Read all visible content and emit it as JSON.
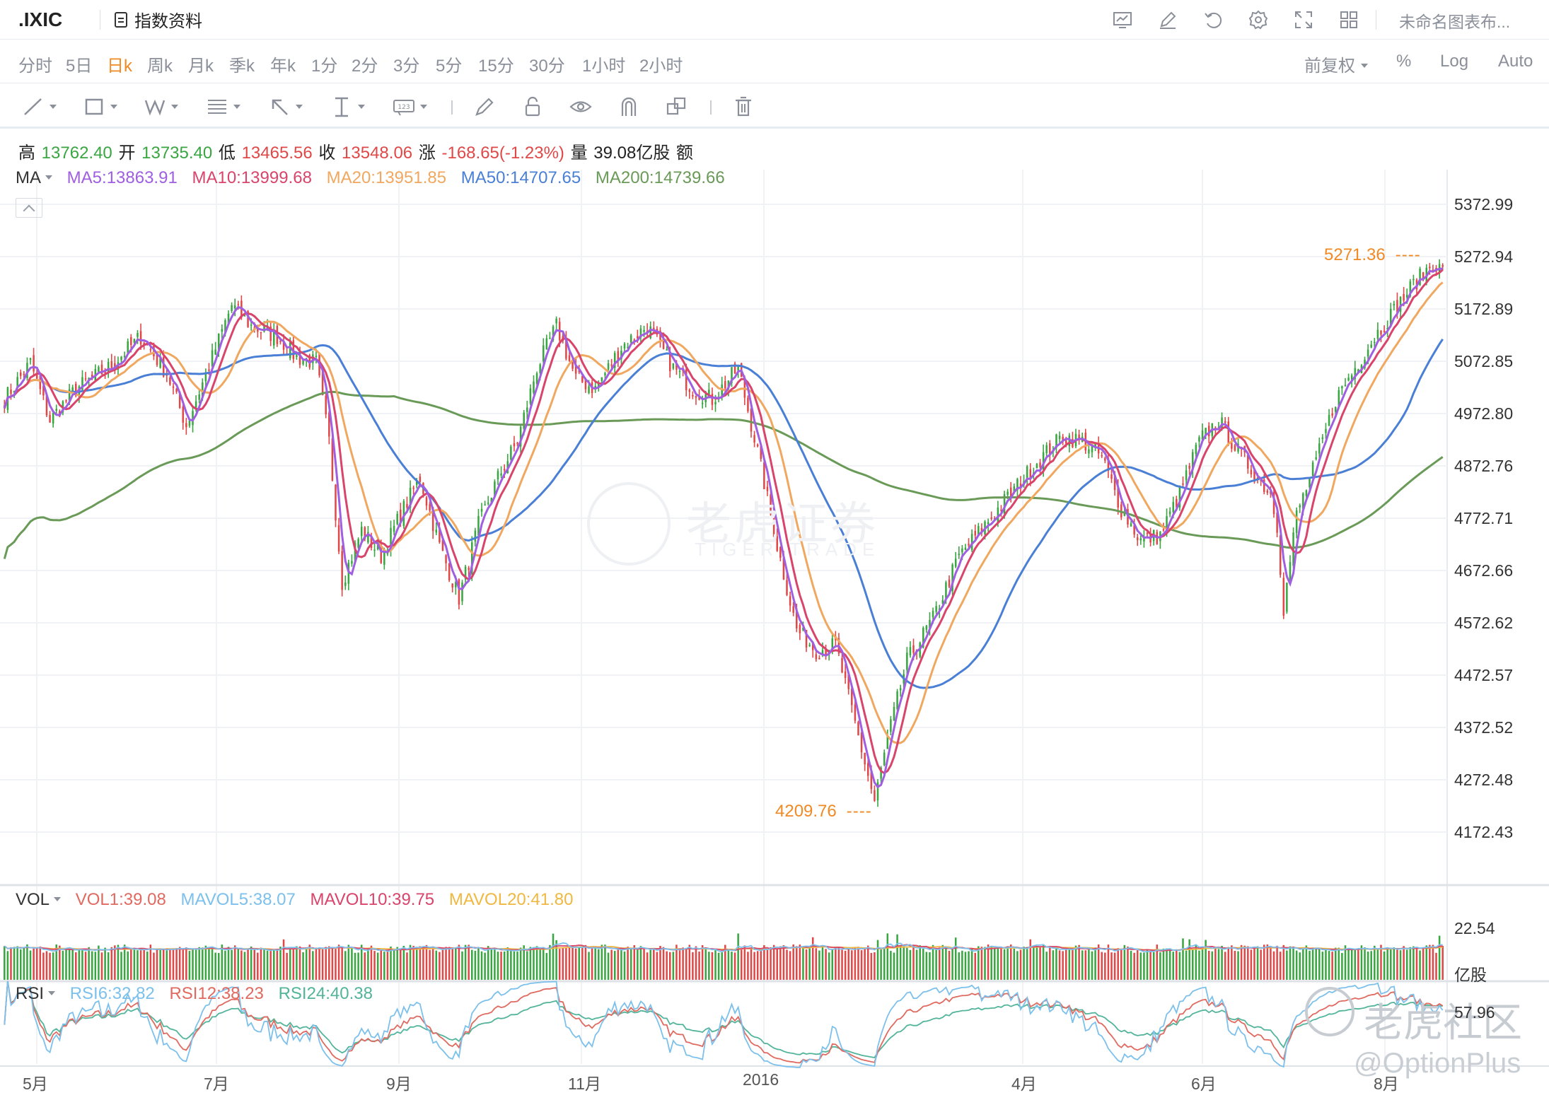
{
  "header": {
    "symbol": ".IXIC",
    "info_button": "指数资料",
    "layout_name": "未命名图表布...",
    "icons": [
      "indicator-icon",
      "draw-icon",
      "undo-icon",
      "settings-icon",
      "fullscreen-icon",
      "layout-grid-icon"
    ]
  },
  "periods": [
    "分时",
    "5日",
    "日k",
    "周k",
    "月k",
    "季k",
    "年k",
    "1分",
    "2分",
    "3分",
    "5分",
    "15分",
    "30分",
    "1小时",
    "2小时"
  ],
  "active_period": "日k",
  "right_options": {
    "adjust": "前复权",
    "percent": "%",
    "log": "Log",
    "auto": "Auto"
  },
  "tools": [
    "line-tool-icon",
    "rect-tool-icon",
    "wave-tool-icon",
    "fib-tool-icon",
    "arrow-tool-icon",
    "measure-tool-icon",
    "label-tool-icon",
    "brush-icon",
    "lock-icon",
    "eye-icon",
    "magnet-icon",
    "clone-icon",
    "trash-icon"
  ],
  "quote": {
    "high_label": "高",
    "high": "13762.40",
    "open_label": "开",
    "open": "13735.40",
    "low_label": "低",
    "low": "13465.56",
    "close_label": "收",
    "close": "13548.06",
    "change_label": "涨",
    "change": "-168.65(-1.23%)",
    "volume_label": "量",
    "volume": "39.08亿股",
    "amount_label": "额"
  },
  "ma_legend": {
    "selector": "MA",
    "ma5": "MA5:13863.91",
    "ma10": "MA10:13999.68",
    "ma20": "MA20:13951.85",
    "ma50": "MA50:14707.65",
    "ma200": "MA200:14739.66"
  },
  "vol_legend": {
    "selector": "VOL",
    "vol1": "VOL1:39.08",
    "mavol5": "MAVOL5:38.07",
    "mavol10": "MAVOL10:39.75",
    "mavol20": "MAVOL20:41.80"
  },
  "rsi_legend": {
    "selector": "RSI",
    "rsi6": "RSI6:32.82",
    "rsi12": "RSI12:38.23",
    "rsi24": "RSI24:40.38"
  },
  "colors": {
    "up": "#3aa642",
    "down": "#e04848",
    "ma5": "#a05ee0",
    "ma10": "#d9446b",
    "ma20": "#f0a860",
    "ma50": "#4a7fd6",
    "ma200": "#6a9a58",
    "rsi6": "#7cc0ec",
    "rsi12": "#e06a60",
    "rsi24": "#52b49a",
    "annotation": "#f08a24"
  },
  "chart_data": {
    "type": "candlestick",
    "price_axis": [
      "5372.99",
      "5272.94",
      "5172.89",
      "5072.85",
      "4972.80",
      "4872.76",
      "4772.71",
      "4672.66",
      "4572.62",
      "4472.57",
      "4372.52",
      "4272.48",
      "4172.43"
    ],
    "ylim": [
      4122,
      5420
    ],
    "x_labels": [
      "5月",
      "7月",
      "9月",
      "11月",
      "2016",
      "4月",
      "6月",
      "8月"
    ],
    "annotations": {
      "max": "5271.36",
      "min": "4209.76"
    },
    "anchors": [
      [
        0,
        5000
      ],
      [
        8,
        5070
      ],
      [
        14,
        4960
      ],
      [
        22,
        5020
      ],
      [
        32,
        5060
      ],
      [
        42,
        5120
      ],
      [
        50,
        5050
      ],
      [
        56,
        4950
      ],
      [
        64,
        5080
      ],
      [
        70,
        5180
      ],
      [
        76,
        5140
      ],
      [
        84,
        5120
      ],
      [
        90,
        5080
      ],
      [
        96,
        5070
      ],
      [
        100,
        4920
      ],
      [
        104,
        4650
      ],
      [
        110,
        4750
      ],
      [
        116,
        4700
      ],
      [
        122,
        4780
      ],
      [
        128,
        4850
      ],
      [
        134,
        4720
      ],
      [
        140,
        4620
      ],
      [
        146,
        4760
      ],
      [
        152,
        4850
      ],
      [
        158,
        4920
      ],
      [
        164,
        5060
      ],
      [
        170,
        5140
      ],
      [
        176,
        5040
      ],
      [
        182,
        5020
      ],
      [
        190,
        5100
      ],
      [
        198,
        5140
      ],
      [
        206,
        5060
      ],
      [
        212,
        5020
      ],
      [
        218,
        5000
      ],
      [
        226,
        5060
      ],
      [
        232,
        4900
      ],
      [
        238,
        4720
      ],
      [
        244,
        4560
      ],
      [
        250,
        4520
      ],
      [
        256,
        4530
      ],
      [
        262,
        4380
      ],
      [
        268,
        4230
      ],
      [
        272,
        4350
      ],
      [
        278,
        4500
      ],
      [
        286,
        4580
      ],
      [
        294,
        4700
      ],
      [
        302,
        4760
      ],
      [
        310,
        4820
      ],
      [
        318,
        4880
      ],
      [
        326,
        4930
      ],
      [
        332,
        4920
      ],
      [
        338,
        4890
      ],
      [
        344,
        4790
      ],
      [
        350,
        4730
      ],
      [
        356,
        4740
      ],
      [
        362,
        4820
      ],
      [
        368,
        4920
      ],
      [
        374,
        4960
      ],
      [
        380,
        4900
      ],
      [
        386,
        4850
      ],
      [
        390,
        4820
      ],
      [
        392,
        4760
      ],
      [
        394,
        4600
      ],
      [
        398,
        4780
      ],
      [
        404,
        4880
      ],
      [
        410,
        5000
      ],
      [
        416,
        5060
      ],
      [
        422,
        5120
      ],
      [
        428,
        5170
      ],
      [
        434,
        5220
      ],
      [
        440,
        5260
      ],
      [
        443,
        5245
      ]
    ],
    "volume_axis": [
      "22.54",
      "亿股"
    ],
    "rsi_axis": [
      "57.96"
    ]
  },
  "watermarks": {
    "center": "老虎证券",
    "center_sub": "TIGER TRADE",
    "corner": "老虎社区",
    "corner_sub": "@OptionPlus"
  }
}
